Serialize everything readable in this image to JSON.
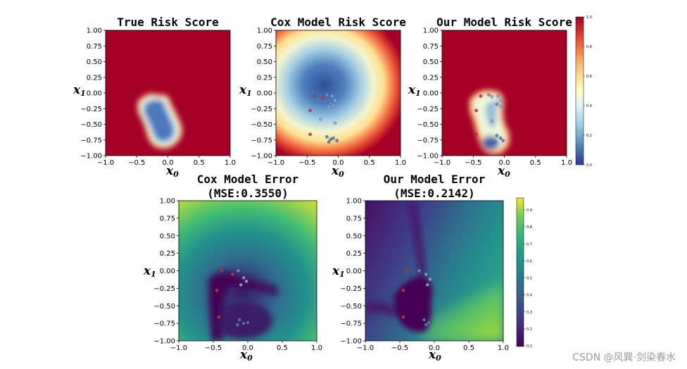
{
  "chart_data": [
    {
      "type": "heatmap",
      "title": "True Risk Score",
      "xlabel": "x0",
      "ylabel": "x1",
      "xlim": [
        -1.0,
        1.0
      ],
      "ylim": [
        -1.0,
        1.0
      ],
      "xticks": [
        "−1.0",
        "−0.5",
        "0.0",
        "0.5",
        "1.0"
      ],
      "yticks": [
        "1.00",
        "0.75",
        "0.50",
        "0.25",
        "0.00",
        "−0.25",
        "−0.50",
        "−0.75",
        "−1.00"
      ],
      "colormap": "RdYlBu_r",
      "background_value": 1.0,
      "points": []
    },
    {
      "type": "heatmap",
      "title": "Cox Model Risk Score",
      "xlabel": "x0",
      "ylabel": "x1",
      "xlim": [
        -1.0,
        1.0
      ],
      "ylim": [
        -1.0,
        1.0
      ],
      "xticks": [
        "−1.0",
        "−0.5",
        "0.0",
        "0.5",
        "1.0"
      ],
      "yticks": [
        "1.00",
        "0.75",
        "0.50",
        "0.25",
        "0.00",
        "−0.25",
        "−0.50",
        "−0.75",
        "−1.00"
      ],
      "colormap": "RdYlBu_r",
      "points": [
        {
          "x": -0.38,
          "y": -0.05,
          "c": "#c0392b"
        },
        {
          "x": -0.25,
          "y": -0.08,
          "c": "#c0392b"
        },
        {
          "x": -0.18,
          "y": -0.03,
          "c": "#7b8fc7"
        },
        {
          "x": -0.1,
          "y": -0.05,
          "c": "#8da3d6"
        },
        {
          "x": -0.05,
          "y": -0.12,
          "c": "#8da3d6"
        },
        {
          "x": -0.12,
          "y": -0.17,
          "c": "#6f86c4"
        },
        {
          "x": -0.08,
          "y": -0.2,
          "c": "#8da3d6"
        },
        {
          "x": -0.15,
          "y": -0.22,
          "c": "#8da3d6"
        },
        {
          "x": -0.45,
          "y": -0.28,
          "c": "#c0392b"
        },
        {
          "x": -0.28,
          "y": -0.42,
          "c": "#8da3d6"
        },
        {
          "x": -0.05,
          "y": -0.48,
          "c": "#8da3d6"
        },
        {
          "x": -0.45,
          "y": -0.66,
          "c": "#c0392b"
        },
        {
          "x": -0.18,
          "y": -0.7,
          "c": "#5d78b9"
        },
        {
          "x": -0.12,
          "y": -0.74,
          "c": "#5d78b9"
        },
        {
          "x": -0.08,
          "y": -0.72,
          "c": "#5d78b9"
        },
        {
          "x": -0.02,
          "y": -0.76,
          "c": "#5d78b9"
        },
        {
          "x": -0.15,
          "y": -0.78,
          "c": "#5d78b9"
        }
      ]
    },
    {
      "type": "heatmap",
      "title": "Our Model Risk Score",
      "xlabel": "x0",
      "ylabel": "x1",
      "xlim": [
        -1.0,
        1.0
      ],
      "ylim": [
        -1.0,
        1.0
      ],
      "xticks": [
        "−1.0",
        "−0.5",
        "0.0",
        "0.5",
        "1.0"
      ],
      "yticks": [
        "1.00",
        "0.75",
        "0.50",
        "0.25",
        "0.00",
        "−0.25",
        "−0.50",
        "−0.75",
        "−1.00"
      ],
      "colormap": "RdYlBu_r",
      "colorbar_ticks": [
        "1.0",
        "0.8",
        "0.6",
        "0.4",
        "0.2",
        "0.0"
      ],
      "points": [
        {
          "x": -0.38,
          "y": -0.05,
          "c": "#c0392b"
        },
        {
          "x": -0.25,
          "y": -0.03,
          "c": "#7b8fc7"
        },
        {
          "x": -0.2,
          "y": -0.06,
          "c": "#8da3d6"
        },
        {
          "x": -0.1,
          "y": -0.05,
          "c": "#8da3d6"
        },
        {
          "x": -0.05,
          "y": -0.12,
          "c": "#8da3d6"
        },
        {
          "x": -0.12,
          "y": -0.18,
          "c": "#6f86c4"
        },
        {
          "x": -0.05,
          "y": -0.22,
          "c": "#8da3d6"
        },
        {
          "x": -0.45,
          "y": -0.28,
          "c": "#c0392b"
        },
        {
          "x": -0.2,
          "y": -0.45,
          "c": "#8da3d6"
        },
        {
          "x": -0.45,
          "y": -0.66,
          "c": "#c0392b"
        },
        {
          "x": -0.12,
          "y": -0.68,
          "c": "#5d78b9"
        },
        {
          "x": -0.06,
          "y": -0.72,
          "c": "#5d78b9"
        },
        {
          "x": -0.15,
          "y": -0.78,
          "c": "#5d78b9"
        },
        {
          "x": -0.02,
          "y": -0.76,
          "c": "#5d78b9"
        }
      ]
    },
    {
      "type": "heatmap",
      "title": "Cox Model Error",
      "subtitle": "(MSE:0.3550)",
      "xlabel": "x0",
      "ylabel": "x1",
      "xlim": [
        -1.0,
        1.0
      ],
      "ylim": [
        -1.0,
        1.0
      ],
      "xticks": [
        "−1.0",
        "−0.5",
        "0.0",
        "0.5",
        "1.0"
      ],
      "yticks": [
        "1.00",
        "0.75",
        "0.50",
        "0.25",
        "0.00",
        "−0.25",
        "−0.50",
        "−0.75",
        "−1.00"
      ],
      "colormap": "viridis",
      "points": [
        {
          "x": -0.38,
          "y": 0.0,
          "c": "#c0392b"
        },
        {
          "x": -0.22,
          "y": -0.05,
          "c": "#c0392b"
        },
        {
          "x": -0.14,
          "y": 0.0,
          "c": "#7b8fc7"
        },
        {
          "x": -0.06,
          "y": -0.1,
          "c": "#8da3d6"
        },
        {
          "x": -0.02,
          "y": -0.15,
          "c": "#8da3d6"
        },
        {
          "x": -0.1,
          "y": -0.2,
          "c": "#8da3d6"
        },
        {
          "x": -0.45,
          "y": -0.28,
          "c": "#c0392b"
        },
        {
          "x": -0.42,
          "y": -0.66,
          "c": "#c0392b"
        },
        {
          "x": -0.12,
          "y": -0.7,
          "c": "#5d78b9"
        },
        {
          "x": -0.06,
          "y": -0.75,
          "c": "#5d78b9"
        },
        {
          "x": 0.0,
          "y": -0.74,
          "c": "#5d78b9"
        },
        {
          "x": -0.15,
          "y": -0.77,
          "c": "#5d78b9"
        }
      ]
    },
    {
      "type": "heatmap",
      "title": "Our Model Error",
      "subtitle": "(MSE:0.2142)",
      "xlabel": "x0",
      "ylabel": "x1",
      "xlim": [
        -1.0,
        1.0
      ],
      "ylim": [
        -1.0,
        1.0
      ],
      "xticks": [
        "−1.0",
        "−0.5",
        "0.0",
        "0.5",
        "1.0"
      ],
      "yticks": [
        "1.00",
        "0.75",
        "0.50",
        "0.25",
        "0.00",
        "−0.25",
        "−0.50",
        "−0.75",
        "−1.00"
      ],
      "colormap": "viridis",
      "colorbar_ticks": [
        "0.9",
        "0.8",
        "0.7",
        "0.6",
        "0.5",
        "0.4",
        "0.3",
        "0.2",
        "0.1"
      ],
      "points": [
        {
          "x": -0.4,
          "y": 0.0,
          "c": "#c0392b"
        },
        {
          "x": -0.22,
          "y": 0.0,
          "c": "#7b8fc7"
        },
        {
          "x": -0.12,
          "y": -0.05,
          "c": "#8da3d6"
        },
        {
          "x": -0.06,
          "y": -0.12,
          "c": "#8da3d6"
        },
        {
          "x": -0.1,
          "y": -0.2,
          "c": "#8da3d6"
        },
        {
          "x": -0.45,
          "y": -0.28,
          "c": "#c0392b"
        },
        {
          "x": -0.45,
          "y": -0.66,
          "c": "#c0392b"
        },
        {
          "x": -0.15,
          "y": -0.7,
          "c": "#5d78b9"
        },
        {
          "x": -0.08,
          "y": -0.74,
          "c": "#5d78b9"
        },
        {
          "x": -0.12,
          "y": -0.77,
          "c": "#5d78b9"
        }
      ]
    }
  ],
  "watermark": "CSDN @风巽·剑染春水"
}
